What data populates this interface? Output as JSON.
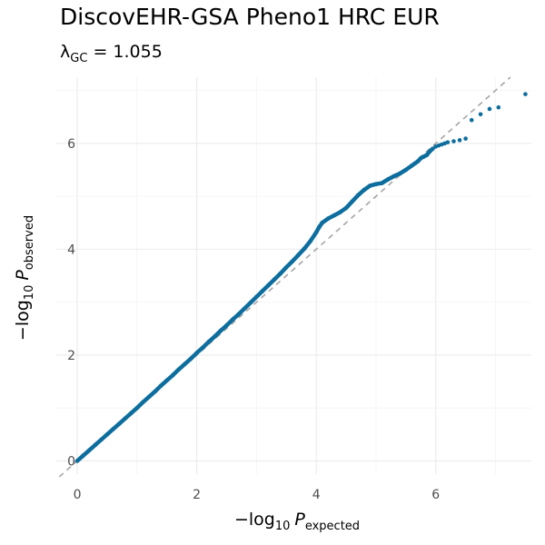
{
  "chart_data": {
    "type": "scatter",
    "title": "DiscovEHR-GSA Pheno1 HRC EUR",
    "subtitle": {
      "lambda_symbol": "λ",
      "lambda_subscript": "GC",
      "equals": "=",
      "lambda_value": "1.055"
    },
    "xlabel": {
      "prefix": "−log",
      "base": "10",
      "var": "P",
      "subscript": "expected"
    },
    "ylabel": {
      "prefix": "−log",
      "base": "10",
      "var": "P",
      "subscript": "observed"
    },
    "xlim": [
      -0.35,
      7.6
    ],
    "ylim": [
      -0.25,
      7.25
    ],
    "x_ticks": [
      0,
      2,
      4,
      6
    ],
    "y_ticks": [
      0,
      2,
      4,
      6
    ],
    "grid": true,
    "reference_line": "y = x (dashed, grey)",
    "point_color": "#0d6e9e",
    "reference_color": "#a6a6a6",
    "points": [
      [
        0,
        0
      ],
      [
        0.1,
        0.1
      ],
      [
        0.2,
        0.2
      ],
      [
        0.3,
        0.3
      ],
      [
        0.4,
        0.4
      ],
      [
        0.5,
        0.5
      ],
      [
        0.6,
        0.6
      ],
      [
        0.7,
        0.7
      ],
      [
        0.8,
        0.8
      ],
      [
        0.9,
        0.9
      ],
      [
        1.0,
        1.0
      ],
      [
        1.1,
        1.11
      ],
      [
        1.2,
        1.21
      ],
      [
        1.3,
        1.31
      ],
      [
        1.4,
        1.42
      ],
      [
        1.5,
        1.52
      ],
      [
        1.6,
        1.62
      ],
      [
        1.7,
        1.73
      ],
      [
        1.8,
        1.83
      ],
      [
        1.9,
        1.93
      ],
      [
        2.0,
        2.04
      ],
      [
        2.1,
        2.14
      ],
      [
        2.2,
        2.25
      ],
      [
        2.3,
        2.35
      ],
      [
        2.4,
        2.46
      ],
      [
        2.5,
        2.56
      ],
      [
        2.6,
        2.67
      ],
      [
        2.7,
        2.77
      ],
      [
        2.8,
        2.88
      ],
      [
        2.9,
        2.99
      ],
      [
        3.0,
        3.1
      ],
      [
        3.1,
        3.21
      ],
      [
        3.2,
        3.32
      ],
      [
        3.3,
        3.43
      ],
      [
        3.4,
        3.54
      ],
      [
        3.5,
        3.66
      ],
      [
        3.6,
        3.77
      ],
      [
        3.7,
        3.89
      ],
      [
        3.8,
        4.01
      ],
      [
        3.9,
        4.15
      ],
      [
        4.0,
        4.32
      ],
      [
        4.05,
        4.42
      ],
      [
        4.1,
        4.5
      ],
      [
        4.2,
        4.58
      ],
      [
        4.3,
        4.64
      ],
      [
        4.4,
        4.7
      ],
      [
        4.5,
        4.78
      ],
      [
        4.6,
        4.9
      ],
      [
        4.7,
        5.02
      ],
      [
        4.8,
        5.12
      ],
      [
        4.9,
        5.2
      ],
      [
        5.0,
        5.23
      ],
      [
        5.1,
        5.25
      ],
      [
        5.2,
        5.32
      ],
      [
        5.3,
        5.38
      ],
      [
        5.4,
        5.43
      ],
      [
        5.5,
        5.5
      ],
      [
        5.6,
        5.58
      ],
      [
        5.65,
        5.62
      ],
      [
        5.7,
        5.66
      ],
      [
        5.75,
        5.72
      ],
      [
        5.8,
        5.75
      ],
      [
        5.85,
        5.78
      ],
      [
        5.9,
        5.85
      ],
      [
        5.95,
        5.9
      ],
      [
        6.0,
        5.94
      ],
      [
        6.05,
        5.96
      ],
      [
        6.1,
        5.98
      ],
      [
        6.15,
        6.0
      ],
      [
        6.2,
        6.02
      ],
      [
        6.3,
        6.04
      ],
      [
        6.4,
        6.06
      ],
      [
        6.5,
        6.09
      ],
      [
        6.6,
        6.44
      ],
      [
        6.75,
        6.55
      ],
      [
        6.9,
        6.65
      ],
      [
        7.05,
        6.68
      ],
      [
        7.5,
        6.93
      ]
    ]
  }
}
